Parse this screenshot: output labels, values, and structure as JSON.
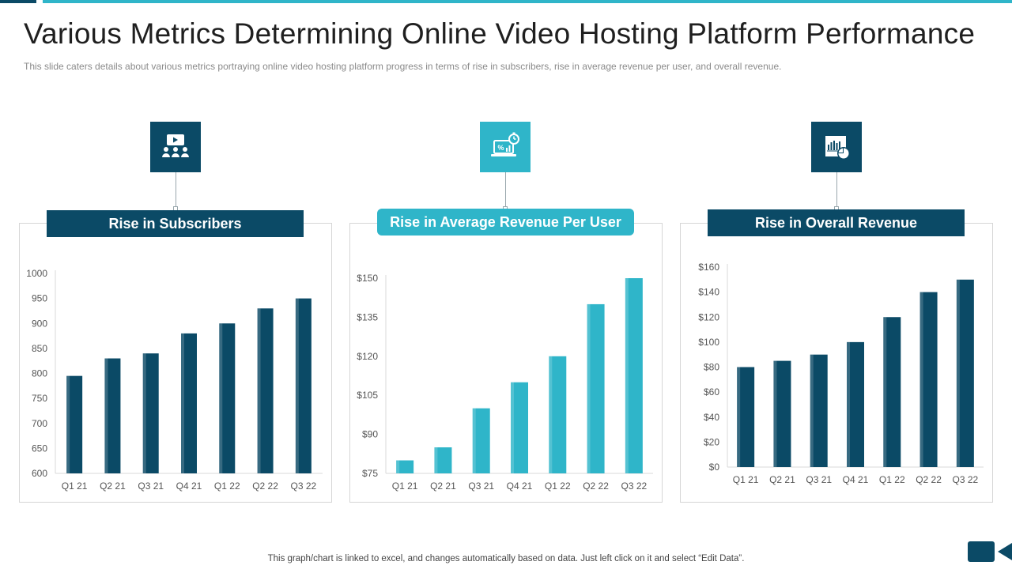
{
  "page": {
    "title": "Various Metrics Determining Online Video Hosting Platform Performance",
    "subtitle": "This slide caters details about various  metrics portraying online video hosting platform progress in terms of rise in subscribers, rise in average  revenue  per user, and overall  revenue.",
    "footer": "This graph/chart is linked to excel,  and changes automatically based on data. Just left click on it and select “Edit Data”."
  },
  "colors": {
    "dark": "#0b4a66",
    "teal": "#2fb5c9"
  },
  "icons": [
    "audience-presentation-icon",
    "laptop-analytics-icon",
    "chart-report-icon",
    "video-camera-icon"
  ],
  "chart_data": [
    {
      "type": "bar",
      "title": "Rise in Subscribers",
      "categories": [
        "Q1 21",
        "Q2 21",
        "Q3 21",
        "Q4 21",
        "Q1 22",
        "Q2 22",
        "Q3 22"
      ],
      "values": [
        795,
        830,
        840,
        880,
        900,
        930,
        950
      ],
      "ylim": [
        600,
        1000
      ],
      "yticks": [
        600,
        650,
        700,
        750,
        800,
        850,
        900,
        950,
        1000
      ],
      "ytick_labels": [
        "600",
        "650",
        "700",
        "750",
        "800",
        "850",
        "900",
        "950",
        "1000"
      ],
      "color": "#0b4a66"
    },
    {
      "type": "bar",
      "title": "Rise in Average Revenue Per User",
      "categories": [
        "Q1 21",
        "Q2 21",
        "Q3 21",
        "Q4 21",
        "Q1 22",
        "Q2 22",
        "Q3 22"
      ],
      "values": [
        80,
        85,
        100,
        110,
        120,
        140,
        150
      ],
      "ylim": [
        75,
        150
      ],
      "yticks": [
        75,
        90,
        105,
        120,
        135,
        150
      ],
      "ytick_labels": [
        "$75",
        "$90",
        "$105",
        "$120",
        "$135",
        "$150"
      ],
      "color": "#2fb5c9"
    },
    {
      "type": "bar",
      "title": "Rise in Overall Revenue",
      "categories": [
        "Q1 21",
        "Q2 21",
        "Q3 21",
        "Q4 21",
        "Q1 22",
        "Q2 22",
        "Q3 22"
      ],
      "values": [
        80,
        85,
        90,
        100,
        120,
        140,
        150
      ],
      "ylim": [
        0,
        160
      ],
      "yticks": [
        0,
        20,
        40,
        60,
        80,
        100,
        120,
        140,
        160
      ],
      "ytick_labels": [
        "$0",
        "$20",
        "$40",
        "$60",
        "$80",
        "$100",
        "$120",
        "$140",
        "$160"
      ],
      "color": "#0b4a66"
    }
  ]
}
